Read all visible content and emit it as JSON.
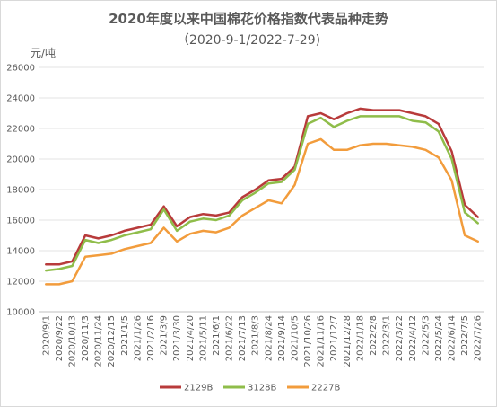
{
  "chart_data": {
    "type": "line",
    "title": "2020年度以来中国棉花价格指数代表品种走势",
    "subtitle": "（2020-9-1/2022-7-29)",
    "ylabel": "元/吨",
    "ylim": [
      10000,
      26000
    ],
    "yticks": [
      "10000",
      "12000",
      "14000",
      "16000",
      "18000",
      "20000",
      "22000",
      "24000",
      "26000"
    ],
    "grid": "horizontal",
    "legend_position": "bottom",
    "categories": [
      "2020/9/1",
      "2020/9/22",
      "2020/10/13",
      "2020/11/3",
      "2020/11/24",
      "2020/12/15",
      "2021/1/5",
      "2021/1/26",
      "2021/2/16",
      "2021/3/9",
      "2021/3/30",
      "2021/4/20",
      "2021/5/11",
      "2021/6/1",
      "2021/6/22",
      "2021/7/13",
      "2021/8/3",
      "2021/8/24",
      "2021/9/14",
      "2021/10/5",
      "2021/10/26",
      "2021/11/16",
      "2021/12/7",
      "2021/12/28",
      "2022/1/18",
      "2022/2/8",
      "2022/3/1",
      "2022/3/22",
      "2022/4/12",
      "2022/5/3",
      "2022/5/24",
      "2022/6/14",
      "2022/7/5",
      "2022/7/26"
    ],
    "series": [
      {
        "name": "2129B",
        "color": "#b83b3b",
        "values": [
          13100,
          13100,
          13300,
          15000,
          14800,
          15000,
          15300,
          15500,
          15700,
          16900,
          15600,
          16200,
          16400,
          16300,
          16500,
          17500,
          18000,
          18600,
          18700,
          19500,
          22800,
          23000,
          22600,
          23000,
          23300,
          23200,
          23200,
          23200,
          23000,
          22800,
          22300,
          20500,
          17000,
          16200
        ]
      },
      {
        "name": "3128B",
        "color": "#8fbd4a",
        "values": [
          12700,
          12800,
          13000,
          14700,
          14500,
          14700,
          15000,
          15200,
          15400,
          16700,
          15300,
          15900,
          16100,
          16000,
          16300,
          17300,
          17800,
          18400,
          18500,
          19300,
          22300,
          22700,
          22100,
          22500,
          22800,
          22800,
          22800,
          22800,
          22500,
          22400,
          21800,
          20000,
          16500,
          15800
        ]
      },
      {
        "name": "2227B",
        "color": "#f29c3c",
        "values": [
          11800,
          11800,
          12000,
          13600,
          13700,
          13800,
          14100,
          14300,
          14500,
          15500,
          14600,
          15100,
          15300,
          15200,
          15500,
          16300,
          16800,
          17300,
          17100,
          18300,
          21000,
          21300,
          20600,
          20600,
          20900,
          21000,
          21000,
          20900,
          20800,
          20600,
          20100,
          18600,
          15000,
          14600
        ]
      }
    ]
  }
}
